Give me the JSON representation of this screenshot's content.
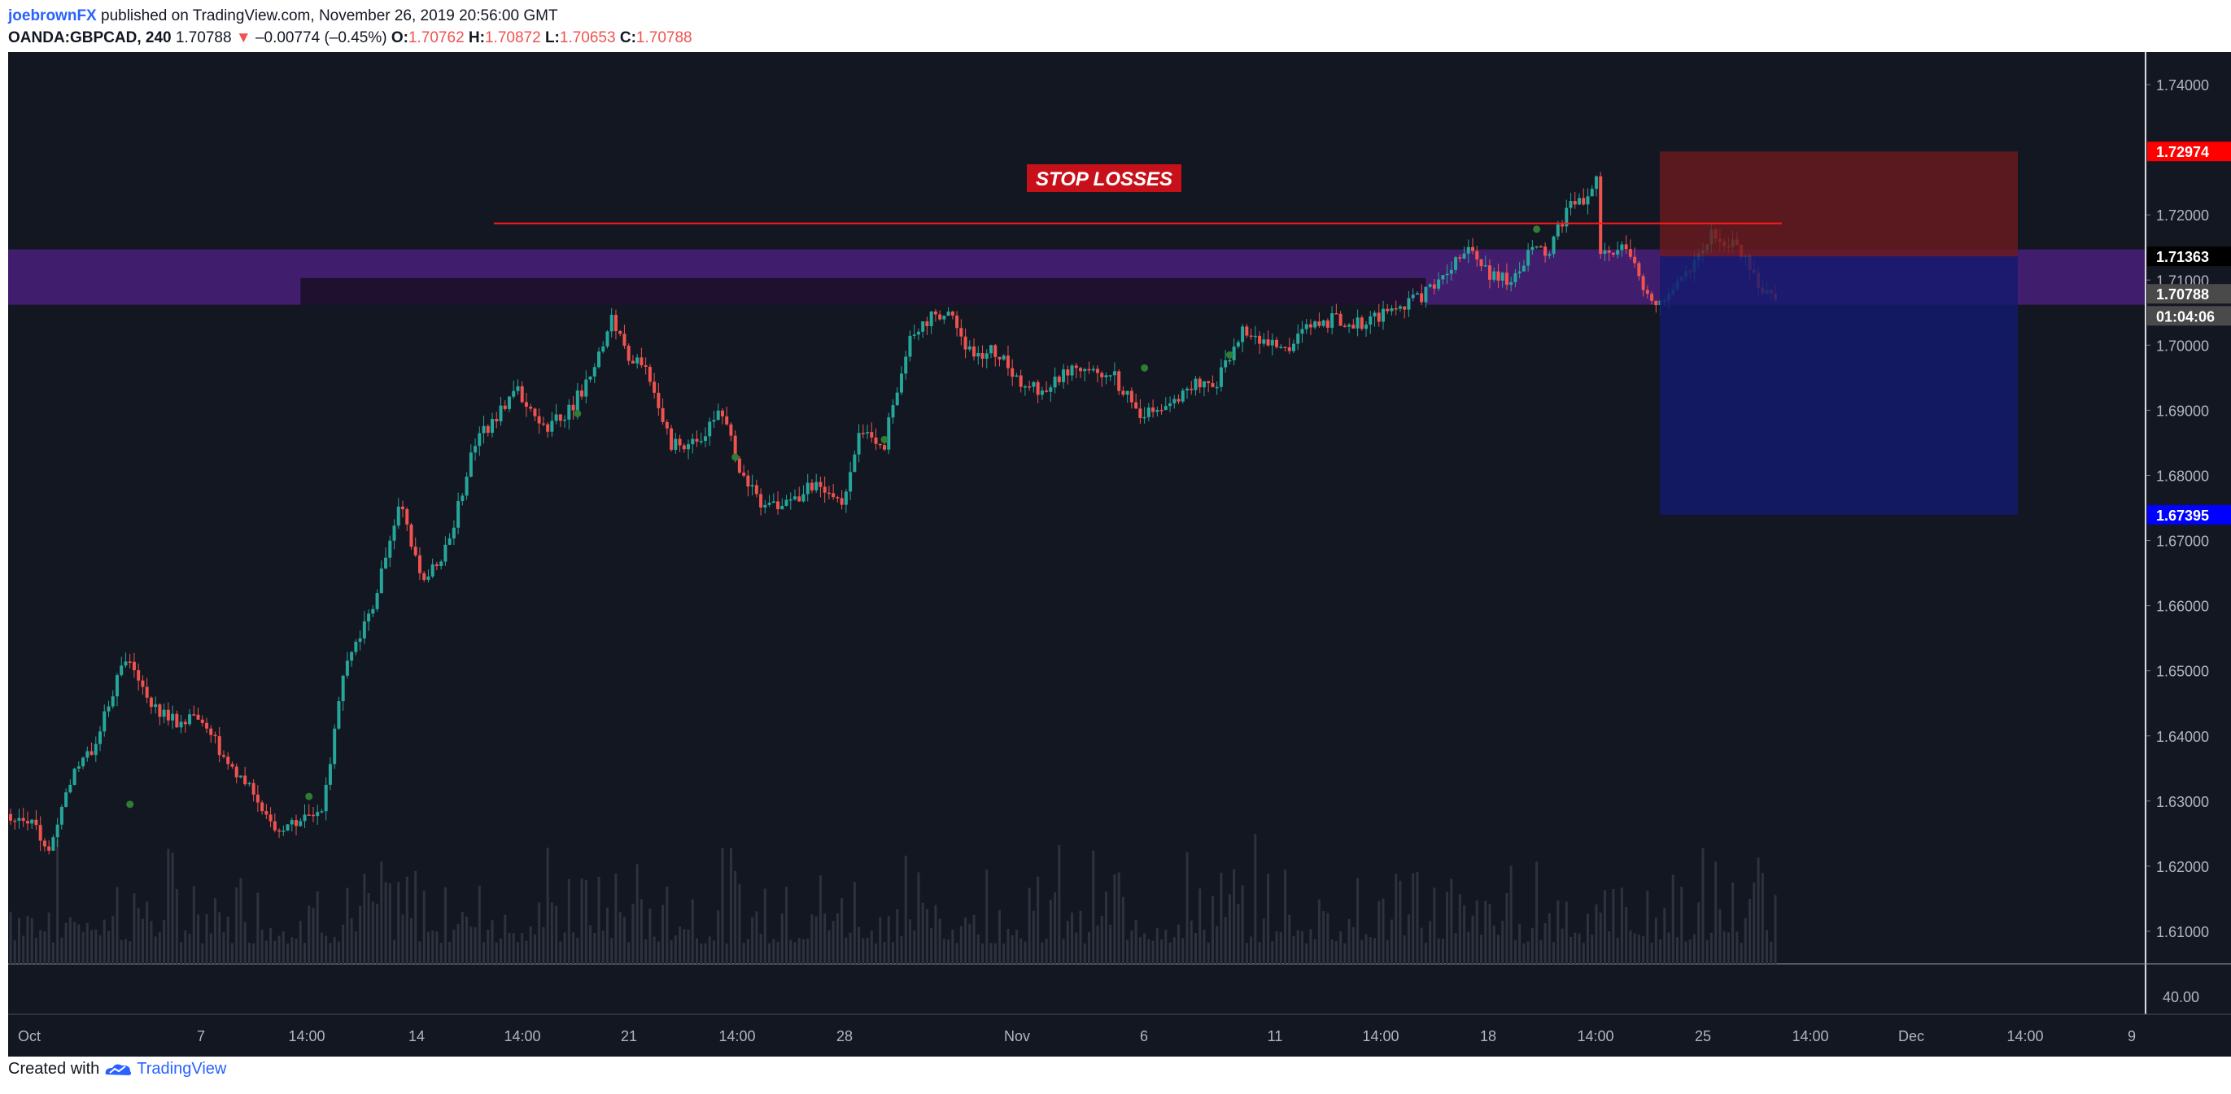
{
  "header": {
    "author": "joebrownFX",
    "published": " published on TradingView.com, November 26, 2019 20:56:00 GMT",
    "symbol": "OANDA:GBPCAD, 240",
    "last": "1.70788",
    "change": "–0.00774 (–0.45%)",
    "o_label": "O:",
    "o": "1.70762",
    "h_label": "H:",
    "h": "1.70872",
    "l_label": "L:",
    "l": "1.70653",
    "c_label": "C:",
    "c": "1.70788"
  },
  "footer": {
    "created": "Created with",
    "brand": "TradingView"
  },
  "colors": {
    "up": "#26a69a",
    "down": "#ef5350",
    "background": "#131722",
    "zone": "#4a1f7a",
    "stop": "#6b1a1f",
    "target": "#141a6e"
  },
  "chart_data": {
    "type": "candlestick",
    "title": "",
    "ylim": [
      1.605,
      1.745
    ],
    "y_ticks": [
      "1.74000",
      "1.72000",
      "1.71000",
      "1.70000",
      "1.69000",
      "1.68000",
      "1.67000",
      "1.66000",
      "1.65000",
      "1.64000",
      "1.63000",
      "1.62000",
      "1.61000"
    ],
    "volume_tick": "40.00",
    "x_ticks": [
      "Oct",
      "7",
      "14:00",
      "14",
      "14:00",
      "21",
      "14:00",
      "28",
      "Nov",
      "6",
      "11",
      "14:00",
      "18",
      "14:00",
      "25",
      "14:00",
      "Dec",
      "14:00",
      "9"
    ],
    "price_labels": [
      {
        "text": "1.72974",
        "value": 1.72974,
        "color": "#ff0000"
      },
      {
        "text": "1.71363",
        "value": 1.71363,
        "color": "#000000"
      },
      {
        "text": "1.70788",
        "value": 1.70788,
        "color": "#4a4a4a"
      },
      {
        "text": "01:04:06",
        "value": 1.7045,
        "color": "#4a4a4a"
      },
      {
        "text": "1.67395",
        "value": 1.67395,
        "color": "#0000ff"
      }
    ],
    "annotation": "STOP LOSSES",
    "stop_losses_level": 1.7187,
    "zone": [
      1.7062,
      1.7147
    ],
    "prior_high_band": [
      1.7062,
      1.7103
    ],
    "position": {
      "entry": 1.71363,
      "stop": 1.72974,
      "target": 1.67395
    },
    "waypoints": [
      [
        0,
        1.628
      ],
      [
        6,
        1.627
      ],
      [
        10,
        1.622
      ],
      [
        14,
        1.632
      ],
      [
        20,
        1.638
      ],
      [
        28,
        1.652
      ],
      [
        34,
        1.645
      ],
      [
        40,
        1.642
      ],
      [
        46,
        1.643
      ],
      [
        52,
        1.635
      ],
      [
        58,
        1.631
      ],
      [
        62,
        1.626
      ],
      [
        68,
        1.627
      ],
      [
        74,
        1.629
      ],
      [
        80,
        1.652
      ],
      [
        86,
        1.66
      ],
      [
        92,
        1.676
      ],
      [
        98,
        1.663
      ],
      [
        104,
        1.67
      ],
      [
        110,
        1.685
      ],
      [
        116,
        1.69
      ],
      [
        120,
        1.693
      ],
      [
        126,
        1.687
      ],
      [
        132,
        1.69
      ],
      [
        138,
        1.696
      ],
      [
        142,
        1.705
      ],
      [
        146,
        1.698
      ],
      [
        150,
        1.697
      ],
      [
        156,
        1.685
      ],
      [
        162,
        1.685
      ],
      [
        168,
        1.69
      ],
      [
        172,
        1.68
      ],
      [
        178,
        1.675
      ],
      [
        184,
        1.676
      ],
      [
        190,
        1.679
      ],
      [
        196,
        1.676
      ],
      [
        200,
        1.686
      ],
      [
        206,
        1.685
      ],
      [
        212,
        1.702
      ],
      [
        218,
        1.705
      ],
      [
        222,
        1.704
      ],
      [
        226,
        1.699
      ],
      [
        232,
        1.699
      ],
      [
        238,
        1.694
      ],
      [
        244,
        1.693
      ],
      [
        250,
        1.697
      ],
      [
        256,
        1.696
      ],
      [
        260,
        1.695
      ],
      [
        266,
        1.689
      ],
      [
        272,
        1.69
      ],
      [
        278,
        1.694
      ],
      [
        284,
        1.694
      ],
      [
        290,
        1.703
      ],
      [
        296,
        1.7
      ],
      [
        300,
        1.699
      ],
      [
        306,
        1.703
      ],
      [
        312,
        1.704
      ],
      [
        318,
        1.703
      ],
      [
        324,
        1.705
      ],
      [
        330,
        1.707
      ],
      [
        336,
        1.709
      ],
      [
        342,
        1.715
      ],
      [
        348,
        1.711
      ],
      [
        354,
        1.71
      ],
      [
        358,
        1.715
      ],
      [
        362,
        1.714
      ],
      [
        366,
        1.721
      ],
      [
        370,
        1.722
      ],
      [
        373,
        1.726
      ],
      [
        374,
        1.714
      ],
      [
        378,
        1.714
      ],
      [
        380,
        1.715
      ],
      [
        384,
        1.709
      ],
      [
        388,
        1.706
      ],
      [
        392,
        1.709
      ],
      [
        396,
        1.712
      ],
      [
        400,
        1.717
      ],
      [
        404,
        1.716
      ],
      [
        408,
        1.714
      ],
      [
        412,
        1.708
      ],
      [
        414,
        1.708
      ]
    ],
    "n_candles": 415
  }
}
